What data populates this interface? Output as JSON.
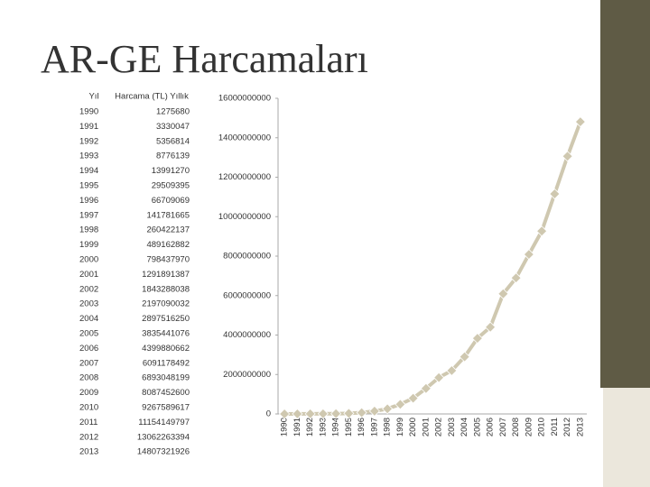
{
  "chart_data": {
    "type": "line",
    "title": "AR-GE Harcamaları",
    "table_header": [
      "Yıl",
      "Harcama (TL) Yıllık"
    ],
    "categories": [
      "1990",
      "1991",
      "1992",
      "1993",
      "1994",
      "1995",
      "1996",
      "1997",
      "1998",
      "1999",
      "2000",
      "2001",
      "2002",
      "2003",
      "2004",
      "2005",
      "2006",
      "2007",
      "2008",
      "2009",
      "2010",
      "2011",
      "2012",
      "2013"
    ],
    "values": [
      1275680,
      3330047,
      5356814,
      8776139,
      13991270,
      29509395,
      66709069,
      141781665,
      260422137,
      489162882,
      798437970,
      1291891387,
      1843288038,
      2197090032,
      2897516250,
      3835441076,
      4399880662,
      6091178492,
      6893048199,
      8087452600,
      9267589617,
      11154149797,
      13062263394,
      14807321926
    ],
    "color": "#cfc8b0",
    "ylim": [
      0,
      16000000000
    ],
    "yticks": [
      0,
      2000000000,
      4000000000,
      6000000000,
      8000000000,
      10000000000,
      12000000000,
      14000000000,
      16000000000
    ],
    "grid": false
  }
}
